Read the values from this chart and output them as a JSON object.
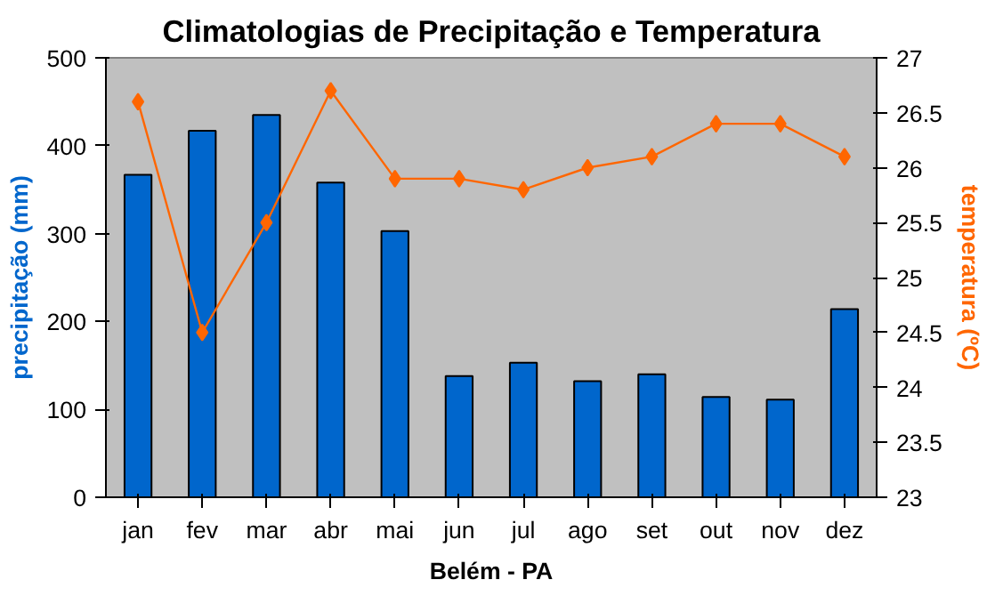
{
  "chart_data": {
    "type": "bar",
    "title": "Climatologias de Precipitação e Temperatura",
    "xlabel": "Belém - PA",
    "ylabel": "precipitação (mm)",
    "y2label": "temperatura (ºC)",
    "categories": [
      "jan",
      "fev",
      "mar",
      "abr",
      "mai",
      "jun",
      "jul",
      "ago",
      "set",
      "out",
      "nov",
      "dez"
    ],
    "series": [
      {
        "color": "#0066cc",
        "values": [
          367,
          417,
          435,
          358,
          303,
          138,
          153,
          132,
          140,
          114,
          111,
          214
        ]
      },
      {
        "type": "line",
        "axis": "y2",
        "color": "#ff6600",
        "marker": "diamond",
        "values": [
          26.6,
          24.5,
          25.5,
          26.7,
          25.9,
          25.9,
          25.8,
          26.0,
          26.1,
          26.4,
          26.4,
          26.1
        ]
      }
    ],
    "ylim": [
      0,
      500
    ],
    "yticks": [
      0,
      100,
      200,
      300,
      400,
      500
    ],
    "y2lim": [
      23,
      27
    ],
    "y2ticks": [
      23,
      23.5,
      24,
      24.5,
      25,
      25.5,
      26,
      26.5,
      27
    ],
    "grid": false
  }
}
